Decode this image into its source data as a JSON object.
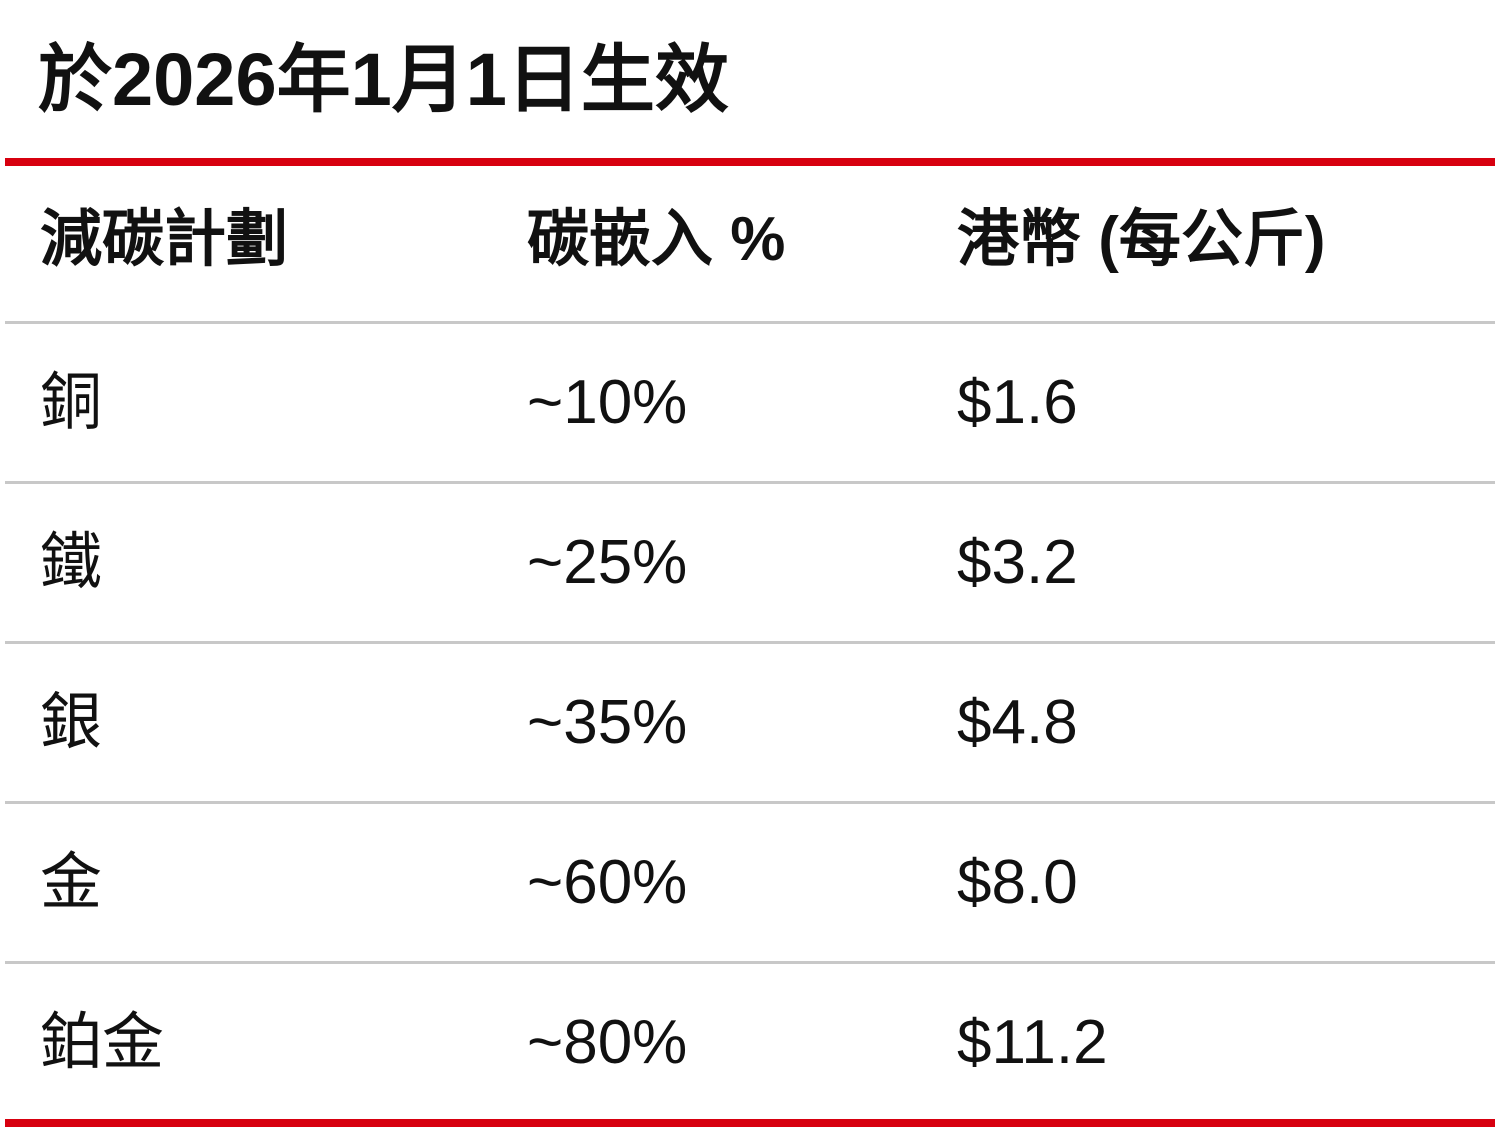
{
  "title": "於2026年1月1日生效",
  "table": {
    "header": [
      "減碳計劃",
      "碳嵌入 %",
      "港幣 (每公斤)"
    ],
    "rows": [
      [
        "銅",
        "~10%",
        "$1.6"
      ],
      [
        "鐵",
        "~25%",
        "$3.2"
      ],
      [
        "銀",
        "~35%",
        "$4.8"
      ],
      [
        "金",
        "~60%",
        "$8.0"
      ],
      [
        "鉑金",
        "~80%",
        "$11.2"
      ]
    ]
  }
}
